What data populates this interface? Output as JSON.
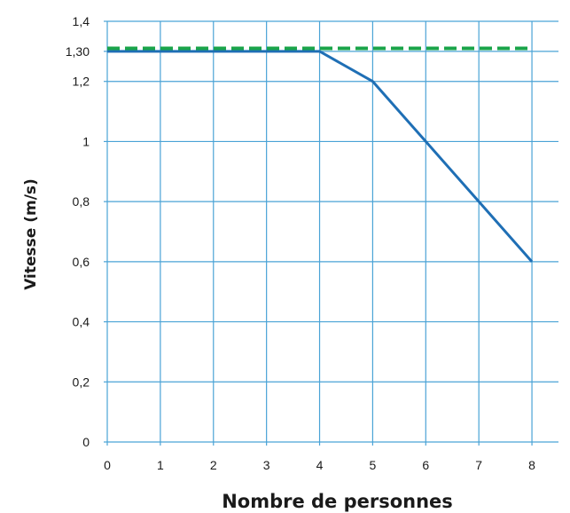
{
  "chart_data": {
    "type": "line",
    "xlabel": "Nombre de personnes",
    "ylabel": "Vitesse (m/s)",
    "xlim": [
      0,
      8.5
    ],
    "ylim": [
      0,
      1.4
    ],
    "x_ticks": [
      0,
      1,
      2,
      3,
      4,
      5,
      6,
      7,
      8
    ],
    "x_tick_labels": [
      "0",
      "1",
      "2",
      "3",
      "4",
      "5",
      "6",
      "7",
      "8"
    ],
    "y_ticks": [
      0,
      0.2,
      0.4,
      0.6,
      0.8,
      1,
      1.2,
      1.3,
      1.4
    ],
    "y_tick_labels": [
      "0",
      "0,2",
      "0,4",
      "0,6",
      "0,8",
      "1",
      "1,2",
      "1,30",
      "1,4"
    ],
    "grid": true,
    "series": [
      {
        "style": "solid",
        "color": "#1f6fb5",
        "x": [
          0,
          4,
          5,
          6,
          7,
          8
        ],
        "y": [
          1.3,
          1.3,
          1.2,
          1.0,
          0.8,
          0.6
        ]
      },
      {
        "style": "dashed",
        "color": "#1aa44a",
        "x": [
          0,
          8
        ],
        "y": [
          1.31,
          1.31
        ]
      }
    ]
  }
}
